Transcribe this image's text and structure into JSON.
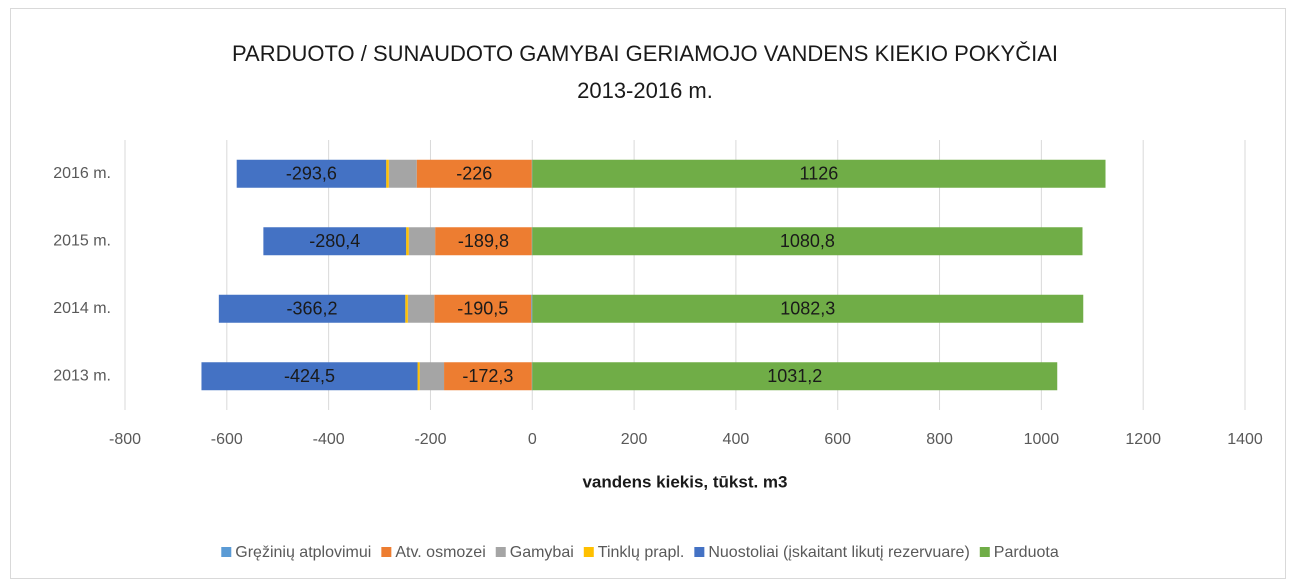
{
  "chart_data": {
    "type": "stacked-bar-horizontal",
    "title": [
      "PARDUOTO / SUNAUDOTO GAMYBAI GERIAMOJO VANDENS KIEKIO POKYČIAI",
      "2013-2016 m."
    ],
    "x_label": "vandens kiekis, tūkst. m3",
    "categories": [
      "2013 m.",
      "2014 m.",
      "2015 m.",
      "2016 m."
    ],
    "series": [
      {
        "name": "Gręžinių atplovimui",
        "color": "#5b9bd5",
        "values": [
          -1,
          -2,
          -1,
          -1
        ]
      },
      {
        "name": "Atv. osmozei",
        "color": "#ed7d31",
        "values": [
          -172.3,
          -190.5,
          -189.8,
          -226
        ],
        "value_labels": [
          "-172,3",
          "-190,5",
          "-189,8",
          "-226"
        ]
      },
      {
        "name": "Gamybai",
        "color": "#a5a5a5",
        "values": [
          -48,
          -52,
          -52,
          -55
        ]
      },
      {
        "name": "Tinklų prapl.",
        "color": "#ffc000",
        "values": [
          -4,
          -5,
          -5,
          -5
        ]
      },
      {
        "name": "Nuostoliai (įskaitant likutį rezervuare)",
        "color": "#4472c4",
        "values": [
          -424.5,
          -366.2,
          -280.4,
          -293.6
        ],
        "value_labels": [
          "-424,5",
          "-366,2",
          "-280,4",
          "-293,6"
        ]
      },
      {
        "name": "Parduota",
        "color": "#70ad47",
        "values": [
          1031.2,
          1082.3,
          1080.8,
          1126
        ],
        "value_labels": [
          "1031,2",
          "1082,3",
          "1080,8",
          "1126"
        ]
      }
    ],
    "xlim": [
      -800,
      1400
    ],
    "xticks": [
      -800,
      -600,
      -400,
      -200,
      0,
      200,
      400,
      600,
      800,
      1000,
      1200,
      1400
    ],
    "grid": true,
    "legend": "bottom"
  }
}
